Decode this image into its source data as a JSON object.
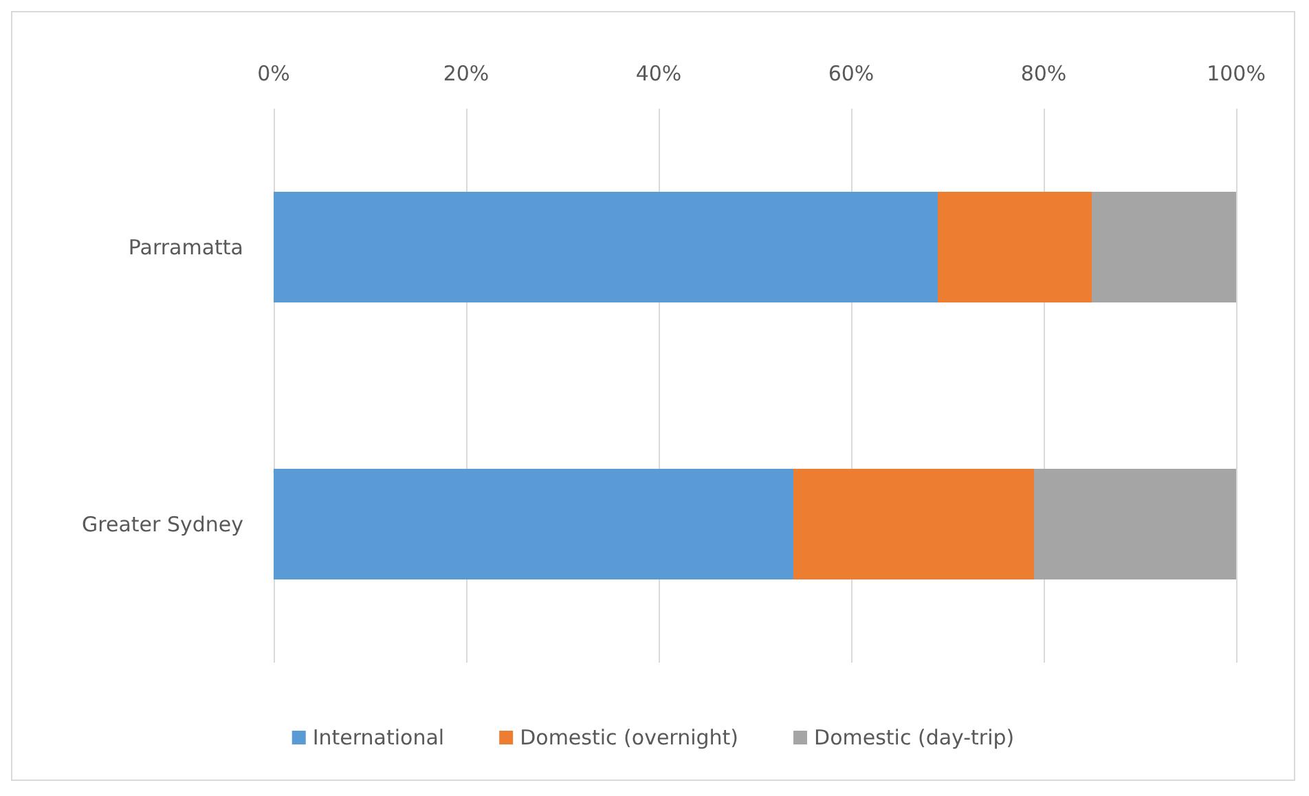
{
  "chart_data": {
    "type": "bar",
    "orientation": "horizontal",
    "stacked": true,
    "categories": [
      "Parramatta",
      "Greater Sydney"
    ],
    "series": [
      {
        "name": "International",
        "color": "#5b9bd5",
        "values": [
          69,
          54
        ]
      },
      {
        "name": "Domestic (overnight)",
        "color": "#ed7d31",
        "values": [
          16,
          25
        ]
      },
      {
        "name": "Domestic (day-trip)",
        "color": "#a5a5a5",
        "values": [
          15,
          21
        ]
      }
    ],
    "xlim": [
      0,
      100
    ],
    "xticks": [
      {
        "value": 0,
        "label": "0%"
      },
      {
        "value": 20,
        "label": "20%"
      },
      {
        "value": 40,
        "label": "40%"
      },
      {
        "value": 60,
        "label": "60%"
      },
      {
        "value": 80,
        "label": "80%"
      },
      {
        "value": 100,
        "label": "100%"
      }
    ],
    "grid": "x",
    "legend": "bottom"
  }
}
